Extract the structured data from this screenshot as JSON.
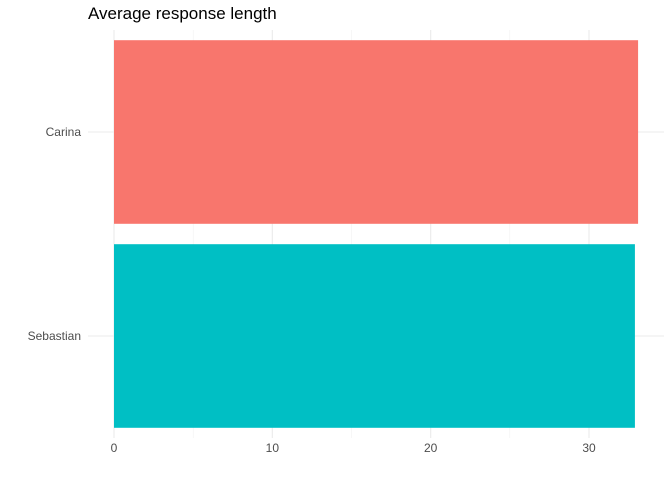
{
  "chart_data": {
    "type": "bar",
    "orientation": "horizontal",
    "title": "Average response length",
    "xlabel": "",
    "ylabel": "",
    "categories": [
      "Carina",
      "Sebastian"
    ],
    "values": [
      33.1,
      32.9
    ],
    "colors": [
      "#F8766D",
      "#00BFC4"
    ],
    "xlim": [
      0,
      34
    ],
    "x_ticks": [
      0,
      10,
      20,
      30
    ],
    "grid": true,
    "legend": "none"
  }
}
